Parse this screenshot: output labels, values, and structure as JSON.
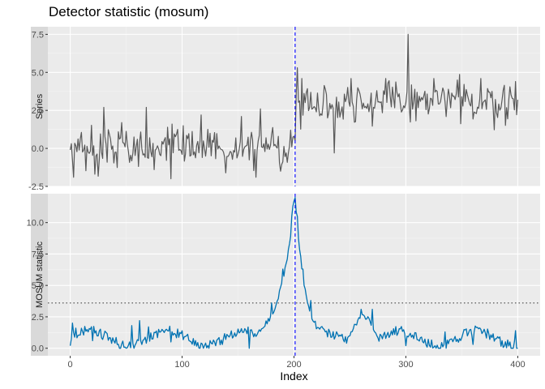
{
  "chart_data": {
    "type": "line",
    "title": "Detector statistic (mosum)",
    "xlabel": "Index",
    "x_ticks": [
      0,
      100,
      200,
      300,
      400
    ],
    "xlim": [
      -20,
      420
    ],
    "colors": {
      "panel_bg": "#ebebeb",
      "grid": "#ffffff",
      "strip_bg": "#d9d9d9",
      "series_line": "#595959",
      "mosum_line": "#0072b2",
      "changepoint_line": "#0000ff",
      "threshold_line": "#333333"
    },
    "changepoint": 201,
    "threshold": 3.6,
    "panels": [
      {
        "strip_label": "Series",
        "ylim": [
          -2.5,
          8.0
        ],
        "y_ticks": [
          -2.5,
          0.0,
          2.5,
          5.0,
          7.5
        ],
        "y_tick_labels": [
          "-2.5",
          "0.0",
          "2.5",
          "5.0",
          "7.5"
        ],
        "series": [
          {
            "values": []
          }
        ]
      },
      {
        "strip_label": "MOSUM statistic",
        "ylim": [
          -0.6,
          12.3
        ],
        "y_ticks": [
          0.0,
          2.5,
          5.0,
          7.5,
          10.0
        ],
        "y_tick_labels": [
          "0.0",
          "2.5",
          "5.0",
          "7.5",
          "10.0"
        ],
        "series": [
          {
            "values": []
          }
        ]
      }
    ]
  }
}
